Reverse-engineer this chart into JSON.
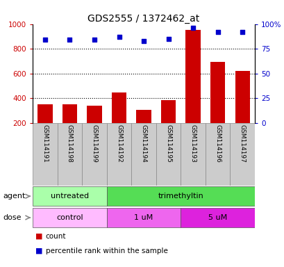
{
  "title": "GDS2555 / 1372462_at",
  "samples": [
    "GSM114191",
    "GSM114198",
    "GSM114199",
    "GSM114192",
    "GSM114194",
    "GSM114195",
    "GSM114193",
    "GSM114196",
    "GSM114197"
  ],
  "counts": [
    350,
    350,
    340,
    445,
    305,
    385,
    950,
    695,
    620
  ],
  "percentiles": [
    84,
    84,
    84,
    87,
    83,
    85,
    96,
    92,
    92
  ],
  "bar_color": "#cc0000",
  "dot_color": "#0000cc",
  "ylim_left": [
    200,
    1000
  ],
  "ylim_right": [
    0,
    100
  ],
  "yticks_left": [
    200,
    400,
    600,
    800,
    1000
  ],
  "yticks_right": [
    0,
    25,
    50,
    75,
    100
  ],
  "ytick_labels_right": [
    "0",
    "25",
    "50",
    "75",
    "100%"
  ],
  "agent_groups": [
    {
      "label": "untreated",
      "start": 0,
      "end": 3,
      "color": "#aaffaa"
    },
    {
      "label": "trimethyltin",
      "start": 3,
      "end": 9,
      "color": "#55dd55"
    }
  ],
  "dose_groups": [
    {
      "label": "control",
      "start": 0,
      "end": 3,
      "color": "#ffbbff"
    },
    {
      "label": "1 uM",
      "start": 3,
      "end": 6,
      "color": "#ee66ee"
    },
    {
      "label": "5 uM",
      "start": 6,
      "end": 9,
      "color": "#dd22dd"
    }
  ],
  "label_agent": "agent",
  "label_dose": "dose",
  "legend_count": "count",
  "legend_percentile": "percentile rank within the sample",
  "tick_color_left": "#cc0000",
  "tick_color_right": "#0000cc",
  "sample_box_color": "#cccccc",
  "bar_width": 0.6
}
